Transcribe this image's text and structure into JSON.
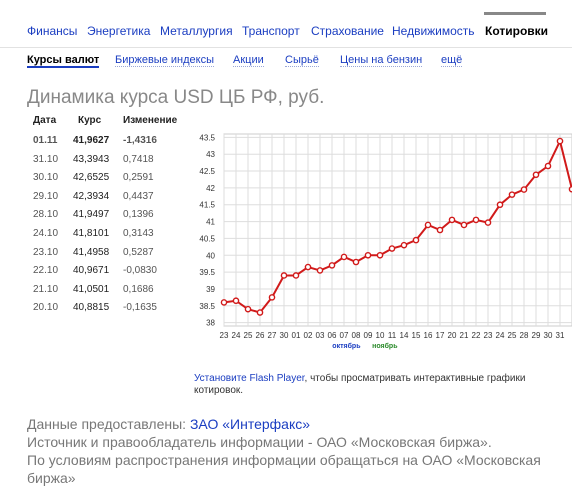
{
  "top_nav": {
    "items": [
      "Финансы",
      "Энергетика",
      "Металлургия",
      "Транспорт",
      "Страхование",
      "Недвижимость",
      "Котировки"
    ],
    "active": "Котировки"
  },
  "sub_nav": {
    "items": [
      "Курсы валют",
      "Биржевые индексы",
      "Акции",
      "Сырьё",
      "Цены на бензин",
      "ещё"
    ],
    "active": "Курсы валют"
  },
  "page_title": "Динамика курса USD ЦБ РФ, руб.",
  "table": {
    "headers": [
      "Дата",
      "Курс",
      "Изменение"
    ],
    "rows": [
      [
        "01.11",
        "41,9627",
        "-1,4316"
      ],
      [
        "31.10",
        "43,3943",
        "0,7418"
      ],
      [
        "30.10",
        "42,6525",
        "0,2591"
      ],
      [
        "29.10",
        "42,3934",
        "0,4437"
      ],
      [
        "28.10",
        "41,9497",
        "0,1396"
      ],
      [
        "24.10",
        "41,8101",
        "0,3143"
      ],
      [
        "23.10",
        "41,4958",
        "0,5287"
      ],
      [
        "22.10",
        "40,9671",
        "-0,0830"
      ],
      [
        "21.10",
        "41,0501",
        "0,1686"
      ],
      [
        "20.10",
        "40,8815",
        "-0,1635"
      ]
    ]
  },
  "chart_data": {
    "type": "line",
    "ylim": [
      37.9,
      43.6
    ],
    "y_ticks": [
      "43.5",
      "43",
      "42.5",
      "42",
      "41.5",
      "41",
      "40.5",
      "40",
      "39.5",
      "39",
      "38.5",
      "38"
    ],
    "y_tick_values": [
      43.5,
      43,
      42.5,
      42,
      41.5,
      41,
      40.5,
      40,
      39.5,
      39,
      38.5,
      38
    ],
    "x_ticks": [
      "23",
      "24",
      "25",
      "26",
      "27",
      "30",
      "01",
      "02",
      "03",
      "06",
      "07",
      "08",
      "09",
      "10",
      "11",
      "14",
      "15",
      "16",
      "17",
      "20",
      "21",
      "22",
      "23",
      "24",
      "25",
      "28",
      "29",
      "30",
      "31"
    ],
    "month_labels": [
      {
        "text": "октябрь",
        "color": "#1a3dc1"
      },
      {
        "text": "ноябрь",
        "color": "#2a8a2a"
      }
    ],
    "values": [
      38.6,
      38.65,
      38.4,
      38.3,
      38.75,
      39.4,
      39.4,
      39.65,
      39.55,
      39.7,
      39.95,
      39.8,
      40.0,
      40.0,
      40.2,
      40.3,
      40.45,
      40.9,
      40.75,
      41.05,
      40.9,
      41.05,
      40.97,
      41.5,
      41.8,
      41.95,
      42.39,
      42.65,
      43.39,
      41.96
    ],
    "line_color": "#d11a1a",
    "grid": true
  },
  "flash_note": {
    "link": "Установите Flash Player",
    "text": ", чтобы просматривать интерактивные графики котировок."
  },
  "footer": {
    "provided_prefix": "Данные предоставлены: ",
    "provided_link": "ЗАО «Интерфакс»",
    "line2": "Источник и правообладатель информации - ОАО «Московская биржа».",
    "line3": "По условиям распространения информации обращаться на ОАО «Московская биржа»"
  }
}
